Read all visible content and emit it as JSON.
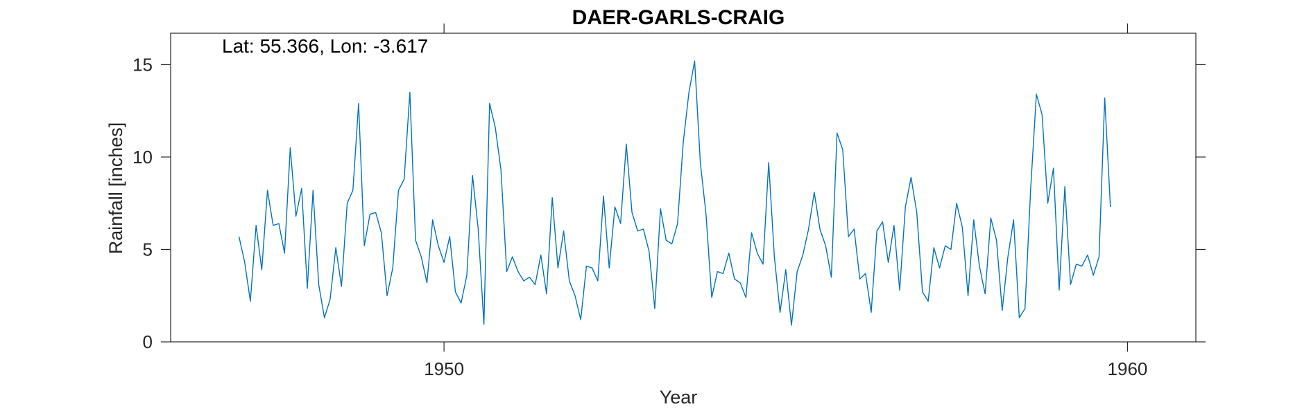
{
  "chart_data": {
    "type": "line",
    "title": "DAER-GARLS-CRAIG",
    "xlabel": "Year",
    "ylabel": "Rainfall [inches]",
    "annotation": "Lat: 55.366, Lon: -3.617",
    "xlim": [
      1946.0,
      1961.0
    ],
    "ylim": [
      0,
      16.7
    ],
    "xticks": [
      1950,
      1960
    ],
    "yticks": [
      0,
      5,
      10,
      15
    ],
    "grid": false,
    "line_color": "#0072BD",
    "x_start": 1947.0,
    "x_step_months": 1,
    "series": [
      {
        "values": [
          5.7,
          4.3,
          2.2,
          6.3,
          3.9,
          8.2,
          6.3,
          6.4,
          4.8,
          10.5,
          6.8,
          8.3,
          2.9,
          8.2,
          3.1,
          1.3,
          2.3,
          5.1,
          3.0,
          7.5,
          8.2,
          12.9,
          5.2,
          6.9,
          7.0,
          5.9,
          2.5,
          4.0,
          8.2,
          8.8,
          13.5,
          5.5,
          4.6,
          3.2,
          6.6,
          5.2,
          4.3,
          5.7,
          2.7,
          2.1,
          3.6,
          9.0,
          6.1,
          0.95,
          12.9,
          11.6,
          9.3,
          3.8,
          4.6,
          3.8,
          3.3,
          3.5,
          3.1,
          4.7,
          2.6,
          7.8,
          4.0,
          6.0,
          3.3,
          2.5,
          1.2,
          4.1,
          4.0,
          3.3,
          7.9,
          4.0,
          7.3,
          6.4,
          10.7,
          7.0,
          6.0,
          6.1,
          4.9,
          1.8,
          7.2,
          5.5,
          5.3,
          6.4,
          10.8,
          13.5,
          15.2,
          9.7,
          6.9,
          2.4,
          3.8,
          3.7,
          4.8,
          3.4,
          3.2,
          2.4,
          5.9,
          4.8,
          4.2,
          9.7,
          4.6,
          1.6,
          3.9,
          0.9,
          3.8,
          4.7,
          6.1,
          8.1,
          6.1,
          5.2,
          3.5,
          11.3,
          10.4,
          5.7,
          6.1,
          3.4,
          3.7,
          1.6,
          6.0,
          6.5,
          4.3,
          6.3,
          2.8,
          7.3,
          8.9,
          7.0,
          2.7,
          2.2,
          5.1,
          4.0,
          5.2,
          5.0,
          7.5,
          6.2,
          2.5,
          6.6,
          4.1,
          2.6,
          6.7,
          5.5,
          1.7,
          4.6,
          6.6,
          1.3,
          1.8,
          8.3,
          13.4,
          12.3,
          7.5,
          9.4,
          2.8,
          8.4,
          3.1,
          4.2,
          4.1,
          4.7,
          3.6,
          4.6,
          13.2,
          7.3
        ]
      }
    ]
  }
}
